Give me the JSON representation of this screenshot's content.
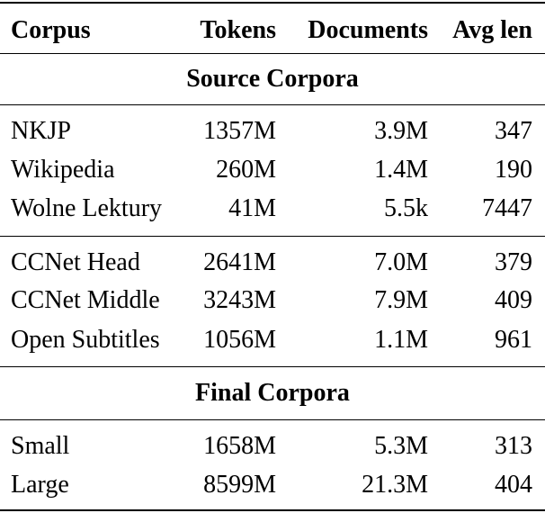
{
  "header": [
    "Corpus",
    "Tokens",
    "Documents",
    "Avg len"
  ],
  "sections": [
    {
      "title": "Source Corpora",
      "groups": [
        [
          [
            "NKJP",
            "1357M",
            "3.9M",
            "347"
          ],
          [
            "Wikipedia",
            "260M",
            "1.4M",
            "190"
          ],
          [
            "Wolne Lektury",
            "41M",
            "5.5k",
            "7447"
          ]
        ],
        [
          [
            "CCNet Head",
            "2641M",
            "7.0M",
            "379"
          ],
          [
            "CCNet Middle",
            "3243M",
            "7.9M",
            "409"
          ],
          [
            "Open Subtitles",
            "1056M",
            "1.1M",
            "961"
          ]
        ]
      ]
    },
    {
      "title": "Final Corpora",
      "groups": [
        [
          [
            "Small",
            "1658M",
            "5.3M",
            "313"
          ],
          [
            "Large",
            "8599M",
            "21.3M",
            "404"
          ]
        ]
      ]
    }
  ]
}
